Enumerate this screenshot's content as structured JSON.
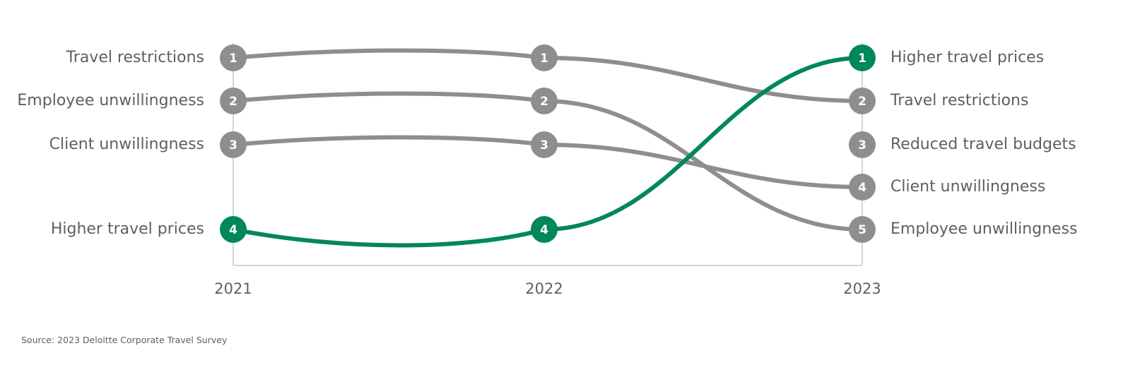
{
  "chart_data": {
    "type": "line",
    "subtype": "bump",
    "x": [
      "2021",
      "2022",
      "2023"
    ],
    "series": [
      {
        "name": "Travel restrictions",
        "values": [
          1,
          1,
          2
        ]
      },
      {
        "name": "Employee unwillingness",
        "values": [
          2,
          2,
          5
        ]
      },
      {
        "name": "Client unwillingness",
        "values": [
          3,
          3,
          4
        ]
      },
      {
        "name": "Higher travel prices",
        "values": [
          4,
          4,
          1
        ]
      },
      {
        "name": "Reduced travel budgets",
        "values": [
          null,
          null,
          3
        ]
      }
    ],
    "highlight_series": "Higher travel prices",
    "left_labels": [
      {
        "rank": 1,
        "text": "Travel restrictions"
      },
      {
        "rank": 2,
        "text": "Employee unwillingness"
      },
      {
        "rank": 3,
        "text": "Client unwillingness"
      },
      {
        "rank": 4,
        "text": "Higher travel prices"
      }
    ],
    "right_labels": [
      {
        "rank": 1,
        "text": "Higher travel prices"
      },
      {
        "rank": 2,
        "text": "Travel restrictions"
      },
      {
        "rank": 3,
        "text": "Reduced travel budgets"
      },
      {
        "rank": 4,
        "text": "Client unwillingness"
      },
      {
        "rank": 5,
        "text": "Employee unwillingness"
      }
    ],
    "y_reversed": true,
    "grid": false,
    "colors": {
      "highlight": "#00875a",
      "default": "#8e8e8e",
      "text": "#5f5f5f",
      "axis": "#c8c8c8"
    }
  },
  "source": "Source: 2023 Deloitte Corporate Travel Survey"
}
